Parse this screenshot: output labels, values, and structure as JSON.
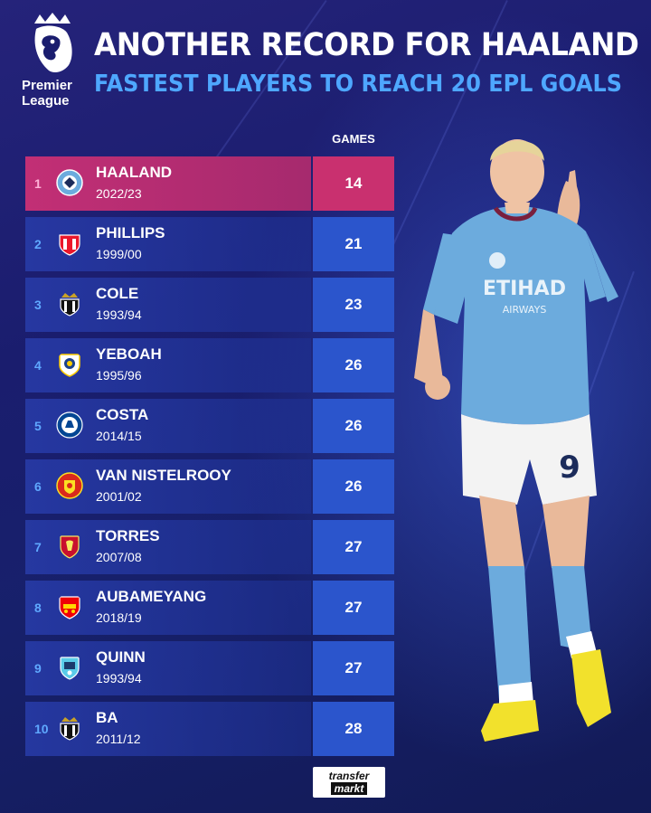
{
  "brand": {
    "logo_line1": "Premier",
    "logo_line2": "League"
  },
  "header": {
    "title": "ANOTHER RECORD FOR HAALAND",
    "subtitle": "FASTEST PLAYERS TO REACH 20 EPL GOALS"
  },
  "table": {
    "column_header": "GAMES",
    "rows": [
      {
        "rank": "1",
        "name": "HAALAND",
        "season": "2022/23",
        "games": "14",
        "crest": "man-city-crest-icon"
      },
      {
        "rank": "2",
        "name": "PHILLIPS",
        "season": "1999/00",
        "games": "21",
        "crest": "sunderland-crest-icon"
      },
      {
        "rank": "3",
        "name": "COLE",
        "season": "1993/94",
        "games": "23",
        "crest": "newcastle-crest-icon"
      },
      {
        "rank": "4",
        "name": "YEBOAH",
        "season": "1995/96",
        "games": "26",
        "crest": "leeds-crest-icon"
      },
      {
        "rank": "5",
        "name": "COSTA",
        "season": "2014/15",
        "games": "26",
        "crest": "chelsea-crest-icon"
      },
      {
        "rank": "6",
        "name": "VAN NISTELROOY",
        "season": "2001/02",
        "games": "26",
        "crest": "man-united-crest-icon"
      },
      {
        "rank": "7",
        "name": "TORRES",
        "season": "2007/08",
        "games": "27",
        "crest": "liverpool-crest-icon"
      },
      {
        "rank": "8",
        "name": "AUBAMEYANG",
        "season": "2018/19",
        "games": "27",
        "crest": "arsenal-crest-icon"
      },
      {
        "rank": "9",
        "name": "QUINN",
        "season": "1993/94",
        "games": "27",
        "crest": "coventry-crest-icon"
      },
      {
        "rank": "10",
        "name": "BA",
        "season": "2011/12",
        "games": "28",
        "crest": "newcastle-crest-icon"
      }
    ]
  },
  "player": {
    "shirt_sponsor_line1": "ETIHAD",
    "shirt_sponsor_line2": "AIRWAYS",
    "shirt_number": "9"
  },
  "footer": {
    "logo_line1": "transfer",
    "logo_line2": "markt"
  },
  "colors": {
    "highlight": "#c9306f",
    "games_box": "#2b55cc",
    "subtitle": "#4ea7ff",
    "sky_blue_kit": "#6cabdd"
  }
}
